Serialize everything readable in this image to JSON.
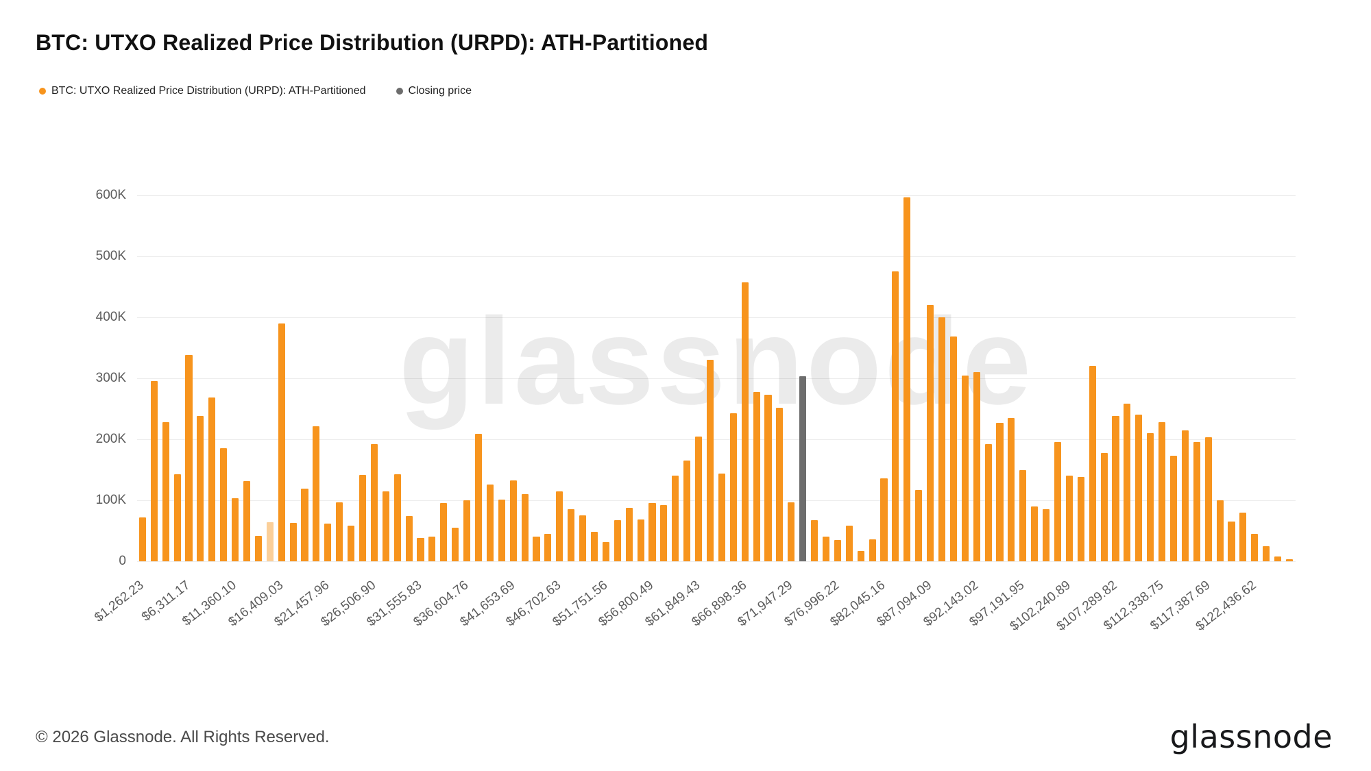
{
  "header": {
    "title": "BTC: UTXO Realized Price Distribution (URPD): ATH-Partitioned"
  },
  "legend": [
    {
      "label": "BTC: UTXO Realized Price Distribution (URPD): ATH-Partitioned",
      "color": "#f7941d"
    },
    {
      "label": "Closing price",
      "color": "#6d6d6d"
    }
  ],
  "watermark": "glassnode",
  "footer": {
    "copyright": "© 2026 Glassnode. All Rights Reserved.",
    "logo": "glassnode"
  },
  "chart_data": {
    "type": "bar",
    "title": "BTC: UTXO Realized Price Distribution (URPD): ATH-Partitioned",
    "xlabel": "",
    "ylabel": "",
    "values_unit": "thousands",
    "ylim": [
      0,
      600
    ],
    "ytick_step": 100,
    "ytick_labels": [
      "0",
      "100K",
      "200K",
      "300K",
      "400K",
      "500K",
      "600K"
    ],
    "xtick_every": 4,
    "xtick_labels": [
      "$1,262.23",
      "$6,311.17",
      "$11,360.10",
      "$16,409.03",
      "$21,457.96",
      "$26,506.90",
      "$31,555.83",
      "$36,604.76",
      "$41,653.69",
      "$46,702.63",
      "$51,751.56",
      "$56,800.49",
      "$61,849.43",
      "$66,898.36",
      "$71,947.29",
      "$76,996.22",
      "$82,045.16",
      "$87,094.09",
      "$92,143.02",
      "$97,191.95",
      "$102,240.89",
      "$107,289.82",
      "$112,338.75",
      "$117,387.69",
      "$122,436.62"
    ],
    "bar_color": "#f7941d",
    "closing_bar_color": "#6d6d6d",
    "closing_index": 57,
    "faded_index": 11,
    "grid": true,
    "legend_position": "top-left",
    "values": [
      72,
      295,
      228,
      143,
      338,
      238,
      268,
      185,
      103,
      131,
      42,
      64,
      390,
      63,
      119,
      221,
      62,
      97,
      58,
      142,
      192,
      115,
      143,
      74,
      38,
      40,
      95,
      55,
      100,
      209,
      126,
      101,
      133,
      110,
      40,
      45,
      115,
      85,
      75,
      48,
      32,
      67,
      88,
      68,
      96,
      92,
      140,
      165,
      205,
      330,
      144,
      243,
      457,
      277,
      273,
      252,
      97,
      303,
      67,
      40,
      35,
      59,
      17,
      36,
      136,
      475,
      597,
      117,
      420,
      400,
      368,
      305,
      310,
      192,
      227,
      235,
      150,
      90,
      85,
      195,
      140,
      138,
      320,
      178,
      238,
      258,
      240,
      210,
      228,
      173,
      215,
      195,
      203,
      100,
      65,
      80,
      45,
      25,
      8,
      3
    ]
  }
}
